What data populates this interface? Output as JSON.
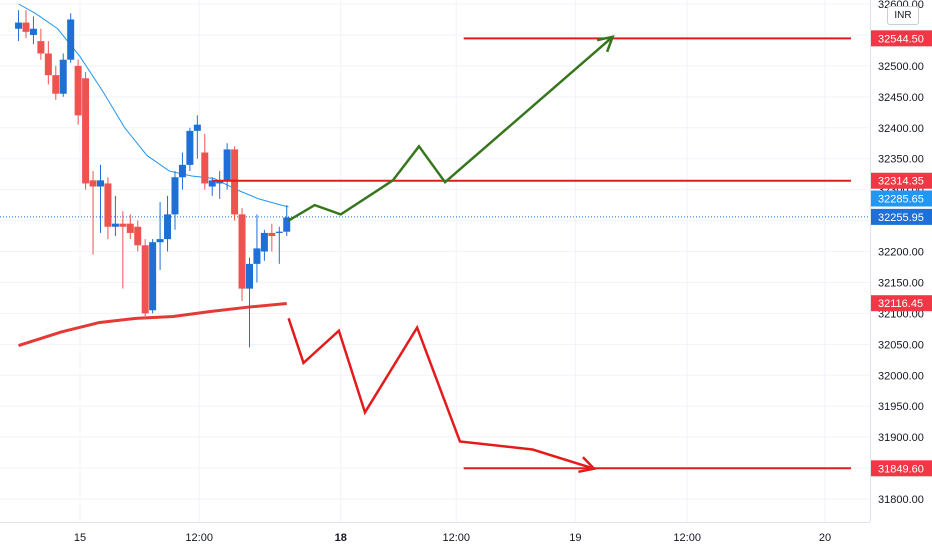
{
  "chart_data": {
    "type": "candlestick",
    "currency": "INR",
    "y_ticks": [
      "32600.00",
      "32550.00",
      "32500.00",
      "32450.00",
      "32400.00",
      "32350.00",
      "32300.00",
      "32250.00",
      "32200.00",
      "32150.00",
      "32100.00",
      "32050.00",
      "32000.00",
      "31950.00",
      "31900.00",
      "31850.00",
      "31800.00"
    ],
    "y_tick_values": [
      32600,
      32550,
      32500,
      32450,
      32400,
      32350,
      32300,
      32250,
      32200,
      32150,
      32100,
      32050,
      32000,
      31950,
      31900,
      31850,
      31800
    ],
    "x_ticks": [
      {
        "label": "15",
        "x": 0.0,
        "bold": false
      },
      {
        "label": "12:00",
        "x": 3.2,
        "bold": false
      },
      {
        "label": "18",
        "x": 7.0,
        "bold": true
      },
      {
        "label": "12:00",
        "x": 10.1,
        "bold": false
      },
      {
        "label": "19",
        "x": 13.3,
        "bold": false
      },
      {
        "label": "12:00",
        "x": 16.3,
        "bold": false
      },
      {
        "label": "20",
        "x": 20.0,
        "bold": false
      }
    ],
    "candles": [
      {
        "x": -1.65,
        "o": 32560,
        "h": 32590,
        "l": 32540,
        "c": 32570
      },
      {
        "x": -1.45,
        "o": 32570,
        "h": 32590,
        "l": 32545,
        "c": 32555
      },
      {
        "x": -1.25,
        "o": 32550,
        "h": 32580,
        "l": 32535,
        "c": 32560
      },
      {
        "x": -1.05,
        "o": 32540,
        "h": 32560,
        "l": 32510,
        "c": 32520
      },
      {
        "x": -0.85,
        "o": 32520,
        "h": 32540,
        "l": 32470,
        "c": 32485
      },
      {
        "x": -0.65,
        "o": 32485,
        "h": 32500,
        "l": 32445,
        "c": 32455
      },
      {
        "x": -0.45,
        "o": 32455,
        "h": 32520,
        "l": 32450,
        "c": 32510
      },
      {
        "x": -0.25,
        "o": 32510,
        "h": 32585,
        "l": 32505,
        "c": 32575
      },
      {
        "x": -0.05,
        "o": 32500,
        "h": 32510,
        "l": 32405,
        "c": 32420
      },
      {
        "x": 0.15,
        "o": 32480,
        "h": 32490,
        "l": 32300,
        "c": 32310
      },
      {
        "x": 0.35,
        "o": 32315,
        "h": 32330,
        "l": 32195,
        "c": 32305
      },
      {
        "x": 0.55,
        "o": 32305,
        "h": 32340,
        "l": 32230,
        "c": 32315
      },
      {
        "x": 0.75,
        "o": 32310,
        "h": 32320,
        "l": 32220,
        "c": 32240
      },
      {
        "x": 0.95,
        "o": 32240,
        "h": 32290,
        "l": 32225,
        "c": 32245
      },
      {
        "x": 1.15,
        "o": 32245,
        "h": 32265,
        "l": 32140,
        "c": 32240
      },
      {
        "x": 1.35,
        "o": 32245,
        "h": 32260,
        "l": 32220,
        "c": 32230
      },
      {
        "x": 1.55,
        "o": 32240,
        "h": 32250,
        "l": 32200,
        "c": 32210
      },
      {
        "x": 1.75,
        "o": 32210,
        "h": 32220,
        "l": 32090,
        "c": 32100
      },
      {
        "x": 1.95,
        "o": 32105,
        "h": 32220,
        "l": 32100,
        "c": 32215
      },
      {
        "x": 2.15,
        "o": 32215,
        "h": 32280,
        "l": 32170,
        "c": 32220
      },
      {
        "x": 2.35,
        "o": 32220,
        "h": 32290,
        "l": 32200,
        "c": 32260
      },
      {
        "x": 2.55,
        "o": 32260,
        "h": 32330,
        "l": 32235,
        "c": 32320
      },
      {
        "x": 2.75,
        "o": 32320,
        "h": 32360,
        "l": 32300,
        "c": 32340
      },
      {
        "x": 2.95,
        "o": 32340,
        "h": 32400,
        "l": 32330,
        "c": 32395
      },
      {
        "x": 3.15,
        "o": 32395,
        "h": 32420,
        "l": 32350,
        "c": 32405
      },
      {
        "x": 3.35,
        "o": 32360,
        "h": 32390,
        "l": 32300,
        "c": 32310
      },
      {
        "x": 3.55,
        "o": 32305,
        "h": 32320,
        "l": 32290,
        "c": 32315
      },
      {
        "x": 3.75,
        "o": 32310,
        "h": 32330,
        "l": 32285,
        "c": 32315
      },
      {
        "x": 3.95,
        "o": 32315,
        "h": 32375,
        "l": 32300,
        "c": 32365
      },
      {
        "x": 4.15,
        "o": 32365,
        "h": 32370,
        "l": 32250,
        "c": 32260
      },
      {
        "x": 4.35,
        "o": 32260,
        "h": 32270,
        "l": 32120,
        "c": 32140
      },
      {
        "x": 4.55,
        "o": 32140,
        "h": 32190,
        "l": 32045,
        "c": 32180
      },
      {
        "x": 4.75,
        "o": 32180,
        "h": 32260,
        "l": 32150,
        "c": 32205
      },
      {
        "x": 4.95,
        "o": 32200,
        "h": 32235,
        "l": 32185,
        "c": 32230
      },
      {
        "x": 5.15,
        "o": 32230,
        "h": 32245,
        "l": 32200,
        "c": 32225
      },
      {
        "x": 5.35,
        "o": 32230,
        "h": 32240,
        "l": 32180,
        "c": 32232
      },
      {
        "x": 5.55,
        "o": 32232,
        "h": 32275,
        "l": 32225,
        "c": 32255
      }
    ],
    "sma_short": [
      [
        -1.65,
        32600
      ],
      [
        -1.2,
        32585
      ],
      [
        -0.6,
        32560
      ],
      [
        0.0,
        32515
      ],
      [
        0.6,
        32460
      ],
      [
        1.2,
        32400
      ],
      [
        1.8,
        32355
      ],
      [
        2.4,
        32330
      ],
      [
        3.0,
        32322
      ],
      [
        3.6,
        32318
      ],
      [
        4.2,
        32300
      ],
      [
        4.8,
        32285
      ],
      [
        5.4,
        32275
      ],
      [
        5.6,
        32272
      ]
    ],
    "sma_long": [
      [
        -1.65,
        32048
      ],
      [
        -0.5,
        32070
      ],
      [
        0.5,
        32085
      ],
      [
        1.5,
        32092
      ],
      [
        2.5,
        32095
      ],
      [
        3.5,
        32103
      ],
      [
        4.5,
        32110
      ],
      [
        5.55,
        32116
      ]
    ],
    "scenario_up": [
      [
        5.6,
        32250
      ],
      [
        6.3,
        32275
      ],
      [
        7.0,
        32260
      ],
      [
        8.4,
        32315
      ],
      [
        9.1,
        32370
      ],
      [
        9.8,
        32312
      ],
      [
        14.3,
        32547
      ]
    ],
    "scenario_down": [
      [
        5.6,
        32092
      ],
      [
        6.0,
        32020
      ],
      [
        6.95,
        32072
      ],
      [
        7.65,
        31940
      ],
      [
        9.05,
        32077
      ],
      [
        10.2,
        31893
      ],
      [
        12.15,
        31880
      ],
      [
        13.8,
        31849
      ]
    ],
    "h_lines": [
      {
        "price": 32544.5,
        "x1": 10.3,
        "x2": 20.7
      },
      {
        "price": 32314.35,
        "x1": 3.55,
        "x2": 20.7
      },
      {
        "price": 31849.6,
        "x1": 10.3,
        "x2": 20.7
      }
    ],
    "price_badges": [
      {
        "label": "32544.50",
        "price": 32544.5,
        "color": "#f23645"
      },
      {
        "label": "32314.35",
        "price": 32314.35,
        "color": "#f23645"
      },
      {
        "label": "32285.65",
        "price": 32285.65,
        "color": "#2196f3"
      },
      {
        "label": "32255.95",
        "price": 32255.95,
        "color": "#1e6fd6"
      },
      {
        "label": "32116.45",
        "price": 32116.45,
        "color": "#f23645"
      },
      {
        "label": "31849.60",
        "price": 31849.6,
        "color": "#f23645"
      }
    ],
    "last_price": 32255.95,
    "colors": {
      "up": "#1e6fd6",
      "down": "#ef5350",
      "sma_short": "#2196f3",
      "sma_long": "#e53935",
      "scenario_up": "#38761d",
      "scenario_down": "#e51b1b",
      "level": "#e51b1b"
    },
    "ylim": [
      31770,
      32610
    ],
    "grid": true
  }
}
